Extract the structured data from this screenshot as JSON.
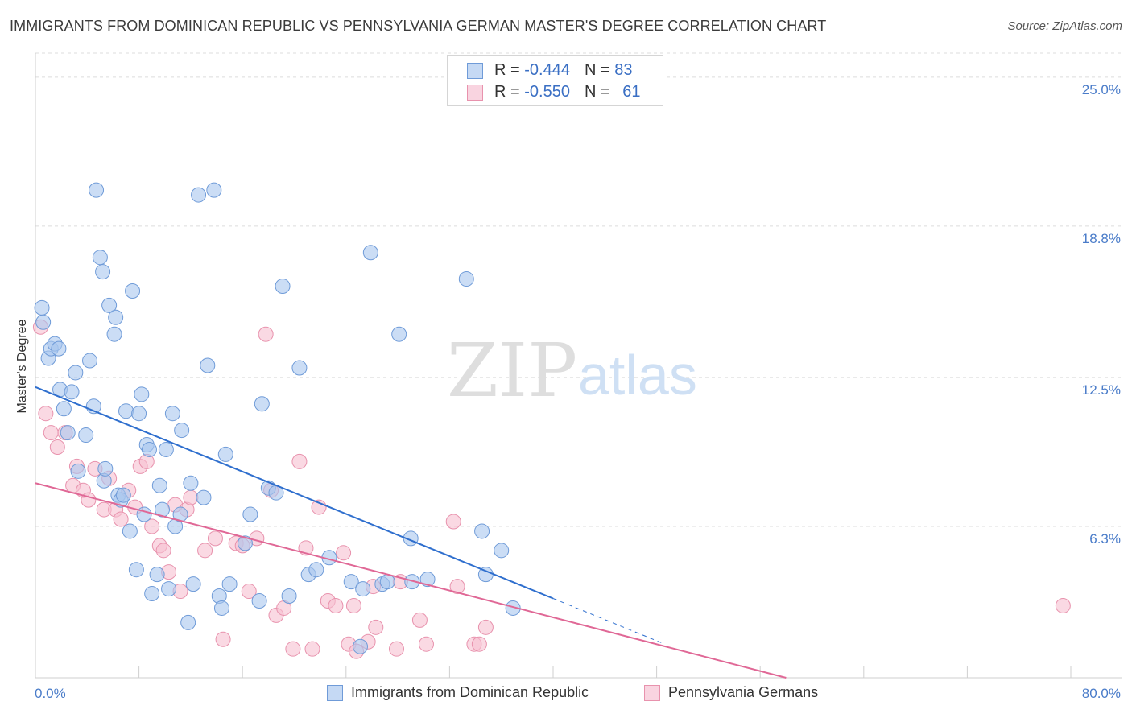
{
  "title": "IMMIGRANTS FROM DOMINICAN REPUBLIC VS PENNSYLVANIA GERMAN MASTER'S DEGREE CORRELATION CHART",
  "source": "Source: ZipAtlas.com",
  "watermark": {
    "zip": "ZIP",
    "atlas": "atlas"
  },
  "legend_top": [
    {
      "r_label": "R = ",
      "r_value": "-0.444",
      "n_label": "N = ",
      "n_value": "83"
    },
    {
      "r_label": "R = ",
      "r_value": "-0.550",
      "n_label": "N = ",
      "n_value": "61"
    }
  ],
  "colors": {
    "blue_fill": "#a9c6ee",
    "blue_stroke": "#6f9bd8",
    "blue_line": "#2f6fce",
    "pink_fill": "#f6bfd0",
    "pink_stroke": "#e892ad",
    "pink_line": "#e06896",
    "tick_text": "#4a7cc9",
    "grid": "#dcdcdc"
  },
  "chart_data": {
    "type": "scatter",
    "xlabel": "",
    "ylabel": "Master's Degree",
    "xlim": [
      0,
      80
    ],
    "ylim": [
      0,
      26.0
    ],
    "x_tick_labels": [
      "0.0%",
      "80.0%"
    ],
    "y_ticks": [
      6.3,
      12.5,
      18.8,
      25.0
    ],
    "y_tick_labels": [
      "6.3%",
      "12.5%",
      "18.8%",
      "25.0%"
    ],
    "grid": "horizontal dashed",
    "legend_position": "bottom",
    "series": [
      {
        "name": "Immigrants from Dominican Republic",
        "color": "#a9c6ee",
        "points": [
          [
            0.5,
            15.4
          ],
          [
            0.6,
            14.8
          ],
          [
            1.0,
            13.3
          ],
          [
            1.2,
            13.7
          ],
          [
            1.5,
            13.9
          ],
          [
            1.8,
            13.7
          ],
          [
            1.9,
            12.0
          ],
          [
            2.2,
            11.2
          ],
          [
            2.5,
            10.2
          ],
          [
            2.8,
            11.9
          ],
          [
            3.1,
            12.7
          ],
          [
            3.3,
            8.6
          ],
          [
            3.9,
            10.1
          ],
          [
            4.2,
            13.2
          ],
          [
            4.5,
            11.3
          ],
          [
            4.7,
            20.3
          ],
          [
            5.0,
            17.5
          ],
          [
            5.2,
            16.9
          ],
          [
            5.3,
            8.2
          ],
          [
            5.4,
            8.7
          ],
          [
            5.7,
            15.5
          ],
          [
            6.1,
            14.3
          ],
          [
            6.2,
            15.0
          ],
          [
            6.4,
            7.6
          ],
          [
            6.6,
            7.4
          ],
          [
            6.8,
            7.6
          ],
          [
            7.0,
            11.1
          ],
          [
            7.3,
            6.1
          ],
          [
            7.5,
            16.1
          ],
          [
            7.8,
            4.5
          ],
          [
            8.0,
            11.0
          ],
          [
            8.2,
            11.8
          ],
          [
            8.4,
            6.8
          ],
          [
            8.6,
            9.7
          ],
          [
            8.8,
            9.5
          ],
          [
            9.0,
            3.5
          ],
          [
            9.4,
            4.3
          ],
          [
            9.6,
            8.0
          ],
          [
            9.8,
            7.0
          ],
          [
            10.1,
            9.5
          ],
          [
            10.3,
            3.7
          ],
          [
            10.6,
            11.0
          ],
          [
            10.8,
            6.3
          ],
          [
            11.2,
            6.8
          ],
          [
            11.3,
            10.3
          ],
          [
            11.8,
            2.3
          ],
          [
            12.0,
            8.1
          ],
          [
            12.2,
            3.9
          ],
          [
            12.6,
            20.1
          ],
          [
            13.0,
            7.5
          ],
          [
            13.3,
            13.0
          ],
          [
            13.8,
            20.3
          ],
          [
            14.2,
            3.4
          ],
          [
            14.4,
            2.9
          ],
          [
            14.7,
            9.3
          ],
          [
            15.0,
            3.9
          ],
          [
            16.2,
            5.6
          ],
          [
            16.6,
            6.8
          ],
          [
            17.3,
            3.2
          ],
          [
            17.5,
            11.4
          ],
          [
            18.0,
            7.9
          ],
          [
            18.6,
            7.7
          ],
          [
            19.1,
            16.3
          ],
          [
            19.6,
            3.4
          ],
          [
            20.4,
            12.9
          ],
          [
            21.1,
            4.3
          ],
          [
            21.7,
            4.5
          ],
          [
            22.7,
            5.0
          ],
          [
            24.4,
            4.0
          ],
          [
            25.1,
            1.3
          ],
          [
            25.3,
            3.7
          ],
          [
            25.9,
            17.7
          ],
          [
            26.8,
            3.9
          ],
          [
            27.2,
            4.0
          ],
          [
            28.1,
            14.3
          ],
          [
            29.0,
            5.8
          ],
          [
            29.1,
            4.0
          ],
          [
            30.3,
            4.1
          ],
          [
            33.3,
            16.6
          ],
          [
            34.5,
            6.1
          ],
          [
            34.8,
            4.3
          ],
          [
            36.0,
            5.3
          ],
          [
            36.9,
            2.9
          ]
        ]
      },
      {
        "name": "Pennsylvania Germans",
        "color": "#f6bfd0",
        "points": [
          [
            0.4,
            14.6
          ],
          [
            0.8,
            11.0
          ],
          [
            1.2,
            10.2
          ],
          [
            1.7,
            9.6
          ],
          [
            2.3,
            10.2
          ],
          [
            2.9,
            8.0
          ],
          [
            3.2,
            8.8
          ],
          [
            3.7,
            7.8
          ],
          [
            4.1,
            7.4
          ],
          [
            4.6,
            8.7
          ],
          [
            5.3,
            7.0
          ],
          [
            5.7,
            8.3
          ],
          [
            6.2,
            7.0
          ],
          [
            6.6,
            6.6
          ],
          [
            7.2,
            7.8
          ],
          [
            7.7,
            7.1
          ],
          [
            8.1,
            8.8
          ],
          [
            8.6,
            9.0
          ],
          [
            9.0,
            6.3
          ],
          [
            9.6,
            5.5
          ],
          [
            9.9,
            5.3
          ],
          [
            10.3,
            4.4
          ],
          [
            10.8,
            7.2
          ],
          [
            11.2,
            3.6
          ],
          [
            11.7,
            7.0
          ],
          [
            12.0,
            7.5
          ],
          [
            13.1,
            5.3
          ],
          [
            13.9,
            5.8
          ],
          [
            14.5,
            1.6
          ],
          [
            15.5,
            5.6
          ],
          [
            16.0,
            5.5
          ],
          [
            16.5,
            3.6
          ],
          [
            17.1,
            5.8
          ],
          [
            17.8,
            14.3
          ],
          [
            18.2,
            7.8
          ],
          [
            18.6,
            2.6
          ],
          [
            19.2,
            2.9
          ],
          [
            19.9,
            1.2
          ],
          [
            20.4,
            9.0
          ],
          [
            20.9,
            5.4
          ],
          [
            21.4,
            1.2
          ],
          [
            21.9,
            7.1
          ],
          [
            22.6,
            3.2
          ],
          [
            23.2,
            3.0
          ],
          [
            23.8,
            5.2
          ],
          [
            24.2,
            1.4
          ],
          [
            24.6,
            3.0
          ],
          [
            24.8,
            1.1
          ],
          [
            25.7,
            1.5
          ],
          [
            26.1,
            3.8
          ],
          [
            26.3,
            2.1
          ],
          [
            27.9,
            1.2
          ],
          [
            28.2,
            4.0
          ],
          [
            29.7,
            2.4
          ],
          [
            30.2,
            1.4
          ],
          [
            32.3,
            6.5
          ],
          [
            32.6,
            3.8
          ],
          [
            33.9,
            1.4
          ],
          [
            34.3,
            1.4
          ],
          [
            34.8,
            2.1
          ],
          [
            79.4,
            3.0
          ]
        ]
      }
    ],
    "trend_lines": [
      {
        "series": "Immigrants from Dominican Republic",
        "x": [
          0,
          40
        ],
        "y": [
          12.1,
          3.3
        ],
        "dashed_extension_to_x": 48.5
      },
      {
        "series": "Pennsylvania Germans",
        "x": [
          0,
          58
        ],
        "y": [
          8.1,
          0.0
        ]
      }
    ]
  }
}
